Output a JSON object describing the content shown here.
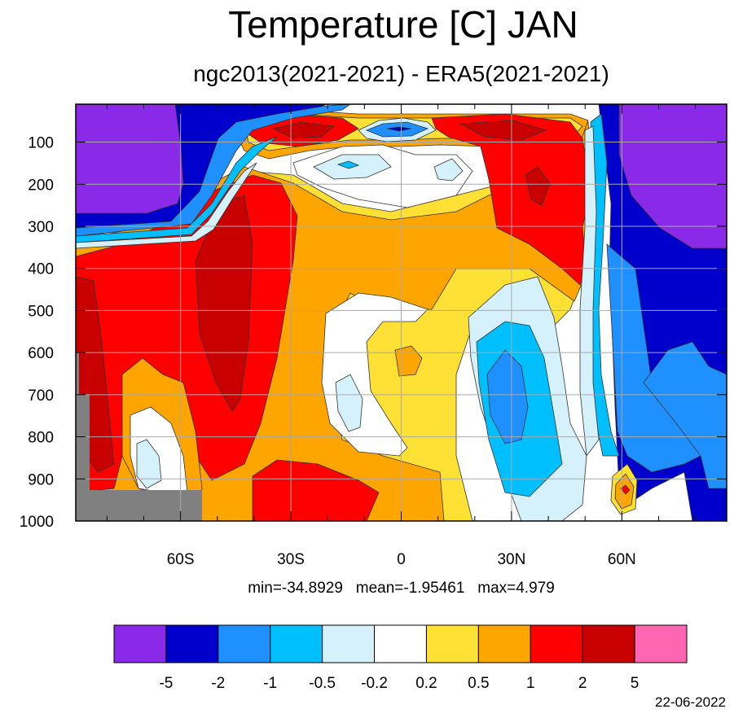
{
  "title": "Temperature [C] JAN",
  "subtitle": "ngc2013(2021-2021) - ERA5(2021-2021)",
  "stats_text": "min=-34.8929   mean=-1.95461   max=4.979",
  "date": "22-06-2022",
  "chart_data": {
    "type": "contour",
    "title": "Temperature [C] JAN",
    "subtitle": "ngc2013(2021-2021) - ERA5(2021-2021)",
    "x_ticks": [
      {
        "value": -60,
        "label": "60S"
      },
      {
        "value": -30,
        "label": "30S"
      },
      {
        "value": 0,
        "label": "0"
      },
      {
        "value": 30,
        "label": "30N"
      },
      {
        "value": 60,
        "label": "60N"
      }
    ],
    "y_ticks": [
      100,
      200,
      300,
      400,
      500,
      600,
      700,
      800,
      900,
      1000
    ],
    "xlim": [
      -88.5,
      88.5
    ],
    "ylim": [
      10,
      1000
    ],
    "grid": true,
    "stats": {
      "min": -34.8929,
      "mean": -1.95461,
      "max": 4.979
    },
    "colorbar": {
      "levels": [
        "-5",
        "-2",
        "-1",
        "-0.5",
        "-0.2",
        "0.2",
        "0.5",
        "1",
        "2",
        "5"
      ],
      "colors": [
        "#8a2ae8",
        "#0000cd",
        "#1e90ff",
        "#00bfff",
        "#d4f1fc",
        "#ffffff",
        "#ffe135",
        "#ffa500",
        "#ff0000",
        "#c80000",
        "#ff66b2"
      ]
    },
    "missing_color": "#808080"
  }
}
